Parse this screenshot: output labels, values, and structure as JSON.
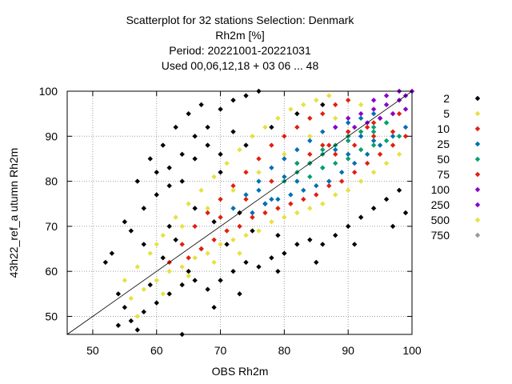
{
  "chart_data": {
    "type": "scatter",
    "title": [
      "Scatterplot for   32 stations Selection: Denmark",
      "Rh2m [%]",
      "Period: 20221001-20221031",
      "Used  00,06,12,18  + 03 06 ... 48"
    ],
    "xlabel": "OBS Rh2m",
    "ylabel": "43h22_ref_a utumn Rh2m",
    "xlim": [
      46,
      100
    ],
    "ylim": [
      46,
      100
    ],
    "xticks": [
      50,
      60,
      70,
      80,
      90,
      100
    ],
    "yticks": [
      50,
      60,
      70,
      80,
      90,
      100
    ],
    "grid": true,
    "diagonal_line": true,
    "legend_position": "right",
    "legend": [
      {
        "label": "2",
        "color": "#000000"
      },
      {
        "label": "5",
        "color": "#e8e040"
      },
      {
        "label": "10",
        "color": "#e02010"
      },
      {
        "label": "25",
        "color": "#0070b0"
      },
      {
        "label": "50",
        "color": "#00a070"
      },
      {
        "label": "75",
        "color": "#e02010"
      },
      {
        "label": "100",
        "color": "#8800cc"
      },
      {
        "label": "250",
        "color": "#8800cc"
      },
      {
        "label": "500",
        "color": "#e8e040"
      },
      {
        "label": "750",
        "color": "#999999"
      }
    ],
    "series": [
      {
        "name": "2",
        "color": "#000000",
        "points": [
          [
            52,
            62
          ],
          [
            53,
            64
          ],
          [
            54,
            55
          ],
          [
            55,
            52
          ],
          [
            55,
            71
          ],
          [
            56,
            69
          ],
          [
            57,
            80
          ],
          [
            58,
            74
          ],
          [
            59,
            85
          ],
          [
            60,
            82
          ],
          [
            61,
            88
          ],
          [
            62,
            79
          ],
          [
            63,
            92
          ],
          [
            64,
            86
          ],
          [
            65,
            95
          ],
          [
            66,
            90
          ],
          [
            67,
            97
          ],
          [
            68,
            92
          ],
          [
            70,
            96
          ],
          [
            72,
            98
          ],
          [
            74,
            99
          ],
          [
            76,
            100
          ],
          [
            54,
            48
          ],
          [
            56,
            49
          ],
          [
            58,
            51
          ],
          [
            60,
            53
          ],
          [
            62,
            55
          ],
          [
            64,
            57
          ],
          [
            66,
            58
          ],
          [
            68,
            56
          ],
          [
            70,
            58
          ],
          [
            72,
            60
          ],
          [
            74,
            62
          ],
          [
            76,
            61
          ],
          [
            78,
            63
          ],
          [
            80,
            64
          ],
          [
            82,
            66
          ],
          [
            84,
            67
          ],
          [
            86,
            66
          ],
          [
            88,
            68
          ],
          [
            90,
            70
          ],
          [
            92,
            72
          ],
          [
            94,
            74
          ],
          [
            96,
            76
          ],
          [
            98,
            78
          ],
          [
            99,
            73
          ],
          [
            57,
            47
          ],
          [
            59,
            57
          ],
          [
            61,
            63
          ],
          [
            63,
            67
          ],
          [
            65,
            60
          ],
          [
            67,
            65
          ],
          [
            69,
            71
          ],
          [
            71,
            66
          ],
          [
            73,
            73
          ],
          [
            75,
            69
          ],
          [
            77,
            75
          ],
          [
            79,
            68
          ],
          [
            60,
            77
          ],
          [
            62,
            83
          ],
          [
            64,
            80
          ],
          [
            66,
            85
          ],
          [
            68,
            88
          ],
          [
            70,
            86
          ],
          [
            72,
            91
          ],
          [
            58,
            66
          ],
          [
            62,
            70
          ],
          [
            66,
            74
          ],
          [
            70,
            82
          ],
          [
            74,
            88
          ],
          [
            78,
            92
          ],
          [
            82,
            95
          ],
          [
            86,
            97
          ],
          [
            64,
            46
          ],
          [
            69,
            52
          ],
          [
            73,
            55
          ],
          [
            79,
            60
          ],
          [
            85,
            62
          ],
          [
            91,
            66
          ],
          [
            97,
            70
          ]
        ]
      },
      {
        "name": "5",
        "color": "#e8e040",
        "points": [
          [
            55,
            58
          ],
          [
            57,
            61
          ],
          [
            59,
            64
          ],
          [
            61,
            68
          ],
          [
            63,
            72
          ],
          [
            65,
            75
          ],
          [
            67,
            78
          ],
          [
            69,
            81
          ],
          [
            71,
            84
          ],
          [
            73,
            87
          ],
          [
            75,
            90
          ],
          [
            77,
            92
          ],
          [
            79,
            94
          ],
          [
            81,
            96
          ],
          [
            83,
            97
          ],
          [
            85,
            98
          ],
          [
            87,
            99
          ],
          [
            58,
            56
          ],
          [
            60,
            58
          ],
          [
            62,
            60
          ],
          [
            64,
            61
          ],
          [
            66,
            63
          ],
          [
            68,
            64
          ],
          [
            70,
            66
          ],
          [
            72,
            67
          ],
          [
            74,
            68
          ],
          [
            76,
            69
          ],
          [
            78,
            71
          ],
          [
            80,
            72
          ],
          [
            82,
            73
          ],
          [
            84,
            74
          ],
          [
            86,
            75
          ],
          [
            88,
            77
          ],
          [
            90,
            78
          ],
          [
            92,
            80
          ],
          [
            94,
            82
          ],
          [
            96,
            84
          ],
          [
            98,
            86
          ],
          [
            56,
            54
          ],
          [
            60,
            66
          ],
          [
            64,
            70
          ],
          [
            68,
            74
          ],
          [
            72,
            78
          ],
          [
            76,
            82
          ],
          [
            80,
            86
          ],
          [
            84,
            90
          ],
          [
            88,
            94
          ],
          [
            92,
            97
          ],
          [
            57,
            50
          ],
          [
            61,
            55
          ],
          [
            65,
            59
          ],
          [
            69,
            62
          ],
          [
            73,
            64
          ]
        ]
      },
      {
        "name": "10",
        "color": "#e02010",
        "points": [
          [
            62,
            62
          ],
          [
            64,
            66
          ],
          [
            66,
            70
          ],
          [
            68,
            73
          ],
          [
            70,
            76
          ],
          [
            72,
            79
          ],
          [
            74,
            82
          ],
          [
            76,
            85
          ],
          [
            78,
            88
          ],
          [
            80,
            90
          ],
          [
            82,
            92
          ],
          [
            84,
            94
          ],
          [
            86,
            95
          ],
          [
            88,
            97
          ],
          [
            90,
            98
          ],
          [
            65,
            63
          ],
          [
            67,
            65
          ],
          [
            69,
            67
          ],
          [
            71,
            69
          ],
          [
            73,
            70
          ],
          [
            75,
            72
          ],
          [
            77,
            73
          ],
          [
            79,
            74
          ],
          [
            81,
            75
          ],
          [
            83,
            76
          ],
          [
            85,
            77
          ],
          [
            87,
            79
          ],
          [
            89,
            80
          ],
          [
            91,
            82
          ],
          [
            93,
            84
          ],
          [
            95,
            86
          ],
          [
            97,
            88
          ],
          [
            99,
            90
          ],
          [
            70,
            72
          ],
          [
            74,
            76
          ],
          [
            78,
            80
          ],
          [
            82,
            84
          ],
          [
            86,
            88
          ],
          [
            90,
            91
          ],
          [
            94,
            93
          ],
          [
            98,
            95
          ]
        ]
      },
      {
        "name": "25",
        "color": "#0070b0",
        "points": [
          [
            72,
            74
          ],
          [
            74,
            77
          ],
          [
            76,
            80
          ],
          [
            78,
            83
          ],
          [
            80,
            85
          ],
          [
            82,
            87
          ],
          [
            84,
            89
          ],
          [
            86,
            91
          ],
          [
            88,
            92
          ],
          [
            90,
            93
          ],
          [
            92,
            94
          ],
          [
            94,
            95
          ],
          [
            75,
            73
          ],
          [
            77,
            75
          ],
          [
            79,
            76
          ],
          [
            81,
            77
          ],
          [
            83,
            78
          ],
          [
            85,
            79
          ],
          [
            87,
            80
          ],
          [
            89,
            82
          ],
          [
            91,
            84
          ],
          [
            93,
            86
          ],
          [
            95,
            88
          ],
          [
            97,
            90
          ],
          [
            99,
            92
          ],
          [
            76,
            78
          ],
          [
            80,
            81
          ],
          [
            84,
            84
          ],
          [
            88,
            87
          ],
          [
            92,
            90
          ],
          [
            96,
            93
          ],
          [
            78,
            76
          ],
          [
            82,
            80
          ],
          [
            86,
            83
          ],
          [
            90,
            86
          ],
          [
            94,
            89
          ]
        ]
      },
      {
        "name": "50",
        "color": "#00a070",
        "points": [
          [
            80,
            80
          ],
          [
            82,
            82
          ],
          [
            84,
            84
          ],
          [
            86,
            86
          ],
          [
            88,
            88
          ],
          [
            90,
            89
          ],
          [
            92,
            91
          ],
          [
            94,
            92
          ],
          [
            96,
            93
          ],
          [
            84,
            81
          ],
          [
            86,
            83
          ],
          [
            88,
            84
          ],
          [
            90,
            85
          ],
          [
            92,
            87
          ],
          [
            94,
            88
          ],
          [
            96,
            89
          ],
          [
            98,
            90
          ],
          [
            82,
            84
          ],
          [
            86,
            87
          ],
          [
            90,
            90
          ],
          [
            94,
            91
          ]
        ]
      },
      {
        "name": "75",
        "color": "#e02010",
        "points": [
          [
            84,
            86
          ],
          [
            87,
            88
          ],
          [
            90,
            91
          ],
          [
            93,
            92
          ],
          [
            95,
            94
          ],
          [
            97,
            95
          ],
          [
            88,
            86
          ],
          [
            91,
            88
          ],
          [
            94,
            90
          ],
          [
            97,
            91
          ]
        ]
      },
      {
        "name": "100",
        "color": "#8800cc",
        "points": [
          [
            88,
            92
          ],
          [
            90,
            94
          ],
          [
            92,
            95
          ],
          [
            94,
            96
          ],
          [
            96,
            97
          ],
          [
            98,
            98
          ],
          [
            99,
            99
          ],
          [
            91,
            92
          ],
          [
            93,
            93
          ],
          [
            95,
            94
          ],
          [
            97,
            95
          ],
          [
            99,
            96
          ],
          [
            94,
            98
          ],
          [
            96,
            99
          ],
          [
            98,
            100
          ],
          [
            100,
            100
          ]
        ]
      }
    ]
  }
}
